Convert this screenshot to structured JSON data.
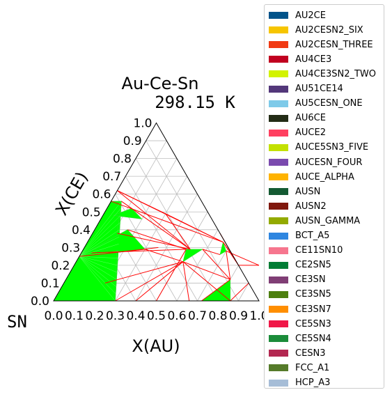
{
  "chart_data": {
    "type": "ternary-phase-diagram",
    "title": "Au-Ce-Sn",
    "subtitle": "298.15 K",
    "xlabel": "X(AU)",
    "ylabel": "X(CE)",
    "corner_label": "SN",
    "xlim": [
      0,
      1
    ],
    "ylim": [
      0,
      1
    ],
    "x_ticks": [
      "0.0",
      "0.1",
      "0.2",
      "0.3",
      "0.4",
      "0.5",
      "0.6",
      "0.7",
      "0.8",
      "0.9",
      "1.0"
    ],
    "y_ticks": [
      "0.0",
      "0.1",
      "0.2",
      "0.3",
      "0.4",
      "0.5",
      "0.6",
      "0.7",
      "0.8",
      "0.9",
      "1.0"
    ],
    "grid": true,
    "legend_position": "right",
    "legend": [
      {
        "name": "AU2CE",
        "color": "#00538a"
      },
      {
        "name": "AU2CESN2_SIX",
        "color": "#f6c500"
      },
      {
        "name": "AU2CESN_THREE",
        "color": "#f13a13"
      },
      {
        "name": "AU4CE3",
        "color": "#c10020"
      },
      {
        "name": "AU4CE3SN2_TWO",
        "color": "#d2f300"
      },
      {
        "name": "AU51CE14",
        "color": "#53377a"
      },
      {
        "name": "AU5CESN_ONE",
        "color": "#7ecae9"
      },
      {
        "name": "AU6CE",
        "color": "#232c16"
      },
      {
        "name": "AUCE2",
        "color": "#ff4060"
      },
      {
        "name": "AUCE5SN3_FIVE",
        "color": "#c3e100"
      },
      {
        "name": "AUCESN_FOUR",
        "color": "#7a4aae"
      },
      {
        "name": "AUCE_ALPHA",
        "color": "#ffb300"
      },
      {
        "name": "AUSN",
        "color": "#145a32"
      },
      {
        "name": "AUSN2",
        "color": "#7f180d"
      },
      {
        "name": "AUSN_GAMMA",
        "color": "#93aa00"
      },
      {
        "name": "BCT_A5",
        "color": "#2e86e0"
      },
      {
        "name": "CE11SN10",
        "color": "#f6768e"
      },
      {
        "name": "CE2SN5",
        "color": "#007d34"
      },
      {
        "name": "CE3SN",
        "color": "#803e75"
      },
      {
        "name": "CE3SN5",
        "color": "#4c7f0f"
      },
      {
        "name": "CE3SN7",
        "color": "#ff8e00"
      },
      {
        "name": "CE5SN3",
        "color": "#f01848"
      },
      {
        "name": "CE5SN4",
        "color": "#1b8c3a"
      },
      {
        "name": "CESN3",
        "color": "#b32851"
      },
      {
        "name": "FCC_A1",
        "color": "#557b2a"
      },
      {
        "name": "HCP_A3",
        "color": "#a6bdd7"
      }
    ],
    "regions": [
      {
        "phase": "green-three-phase",
        "color": "#00ff00",
        "points": [
          [
            0.0,
            0.0
          ],
          [
            0.0,
            0.56
          ],
          [
            0.05,
            0.56
          ],
          [
            0.3,
            0.0
          ]
        ]
      },
      {
        "phase": "green-three-phase",
        "color": "#00ff00",
        "points": [
          [
            0.05,
            0.56
          ],
          [
            0.12,
            0.38
          ],
          [
            0.3,
            0.0
          ]
        ]
      },
      {
        "phase": "green-three-phase",
        "color": "#00ff00",
        "points": [
          [
            0.0,
            0.25
          ],
          [
            0.3,
            0.29
          ],
          [
            0.16,
            0.4
          ]
        ]
      },
      {
        "phase": "green-three-phase",
        "color": "#00ff00",
        "points": [
          [
            0.5,
            0.29
          ],
          [
            0.52,
            0.22
          ],
          [
            0.58,
            0.29
          ]
        ]
      },
      {
        "phase": "green-three-phase",
        "color": "#00ff00",
        "points": [
          [
            0.72,
            0.0
          ],
          [
            0.86,
            0.0
          ],
          [
            0.8,
            0.12
          ]
        ]
      },
      {
        "phase": "green-three-phase",
        "color": "#00ff00",
        "points": [
          [
            0.66,
            0.33
          ],
          [
            0.68,
            0.26
          ],
          [
            0.7,
            0.28
          ]
        ]
      },
      {
        "phase": "green-three-phase",
        "color": "#00ff00",
        "points": [
          [
            0.05,
            0.48
          ],
          [
            0.2,
            0.46
          ],
          [
            0.12,
            0.52
          ]
        ]
      }
    ],
    "tie_lines": [
      [
        [
          0.0,
          0.62
        ],
        [
          0.52,
          0.29
        ]
      ],
      [
        [
          0.0,
          0.62
        ],
        [
          0.66,
          0.33
        ]
      ],
      [
        [
          0.0,
          0.62
        ],
        [
          0.3,
          0.49
        ]
      ],
      [
        [
          0.05,
          0.56
        ],
        [
          0.52,
          0.29
        ]
      ],
      [
        [
          0.0,
          0.56
        ],
        [
          0.66,
          0.33
        ]
      ],
      [
        [
          0.3,
          0.49
        ],
        [
          0.66,
          0.33
        ]
      ],
      [
        [
          0.3,
          0.49
        ],
        [
          0.52,
          0.29
        ]
      ],
      [
        [
          0.12,
          0.38
        ],
        [
          0.52,
          0.29
        ]
      ],
      [
        [
          0.16,
          0.4
        ],
        [
          0.5,
          0.29
        ]
      ],
      [
        [
          0.3,
          0.29
        ],
        [
          0.52,
          0.22
        ]
      ],
      [
        [
          0.3,
          0.0
        ],
        [
          0.52,
          0.22
        ]
      ],
      [
        [
          0.4,
          0.0
        ],
        [
          0.52,
          0.22
        ]
      ],
      [
        [
          0.5,
          0.0
        ],
        [
          0.5,
          0.29
        ]
      ],
      [
        [
          0.52,
          0.22
        ],
        [
          0.66,
          0.0
        ]
      ],
      [
        [
          0.52,
          0.22
        ],
        [
          0.86,
          0.0
        ]
      ],
      [
        [
          0.52,
          0.22
        ],
        [
          0.8,
          0.12
        ]
      ],
      [
        [
          0.58,
          0.29
        ],
        [
          0.8,
          0.12
        ]
      ],
      [
        [
          0.58,
          0.29
        ],
        [
          0.68,
          0.26
        ]
      ],
      [
        [
          0.7,
          0.28
        ],
        [
          0.8,
          0.12
        ]
      ],
      [
        [
          0.66,
          0.33
        ],
        [
          0.8,
          0.2
        ]
      ],
      [
        [
          0.8,
          0.2
        ],
        [
          0.9,
          0.2
        ]
      ],
      [
        [
          0.7,
          0.28
        ],
        [
          0.9,
          0.2
        ]
      ],
      [
        [
          0.66,
          0.33
        ],
        [
          0.76,
          0.24
        ]
      ],
      [
        [
          0.72,
          0.0
        ],
        [
          0.8,
          0.12
        ]
      ],
      [
        [
          0.86,
          0.0
        ],
        [
          0.9,
          0.1
        ]
      ],
      [
        [
          0.62,
          0.38
        ],
        [
          0.8,
          0.2
        ]
      ],
      [
        [
          0.05,
          0.27
        ],
        [
          0.5,
          0.29
        ]
      ],
      [
        [
          0.15,
          0.27
        ],
        [
          0.36,
          0.3
        ]
      ],
      [
        [
          0.2,
          0.1
        ],
        [
          0.52,
          0.22
        ]
      ],
      [
        [
          0.0,
          0.25
        ],
        [
          0.3,
          0.29
        ]
      ]
    ]
  }
}
